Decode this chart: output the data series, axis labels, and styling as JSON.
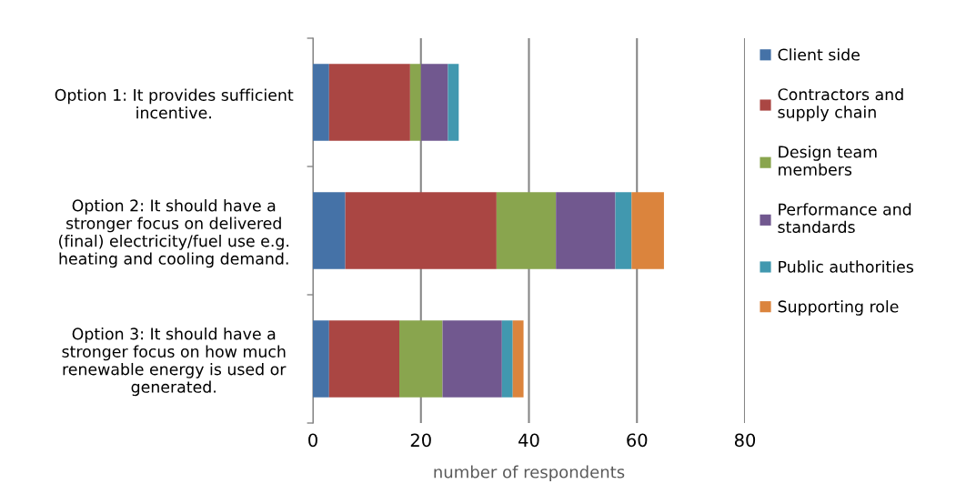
{
  "chart_data": {
    "type": "bar",
    "orientation": "horizontal",
    "stacked": true,
    "categories": [
      "Option 1: It provides sufficient\nincentive.",
      "Option 2: It should have a\nstronger focus on delivered\n(final) electricity/fuel use e.g.\nheating and cooling demand.",
      "Option 3: It should have a\nstronger focus on how much\nrenewable energy is used or\ngenerated."
    ],
    "series": [
      {
        "name": "Client side",
        "color": "#4572a7",
        "values": [
          3,
          6,
          3
        ]
      },
      {
        "name": "Contractors and\nsupply chain",
        "color": "#aa4643",
        "values": [
          15,
          28,
          13
        ]
      },
      {
        "name": "Design team\nmembers",
        "color": "#89a54e",
        "values": [
          2,
          11,
          8
        ]
      },
      {
        "name": "Performance and\nstandards",
        "color": "#71588f",
        "values": [
          5,
          11,
          11
        ]
      },
      {
        "name": "Public authorities",
        "color": "#4198af",
        "values": [
          2,
          3,
          2
        ]
      },
      {
        "name": "Supporting role",
        "color": "#db843d",
        "values": [
          0,
          6,
          2
        ]
      }
    ],
    "xlabel": "number of respondents",
    "xlim": [
      0,
      80
    ],
    "xticks": [
      0,
      20,
      40,
      60,
      80
    ],
    "grid": "x",
    "legend": "right"
  }
}
